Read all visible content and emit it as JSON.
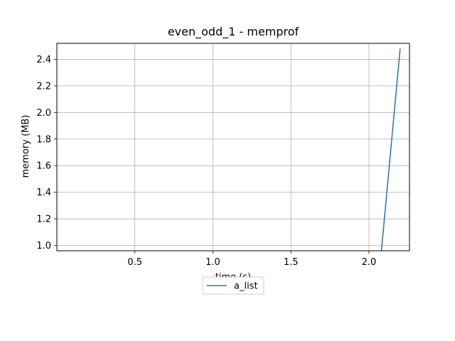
{
  "chart_data": {
    "type": "line",
    "title": "even_odd_1 - memprof",
    "xlabel": "time (s)",
    "ylabel": "memory (MB)",
    "xlim": [
      0.0,
      2.26
    ],
    "ylim": [
      0.96,
      2.52
    ],
    "xticks": [
      0.5,
      1.0,
      1.5,
      2.0
    ],
    "xtick_labels": [
      "0.5",
      "1.0",
      "1.5",
      "2.0"
    ],
    "yticks": [
      1.0,
      1.2,
      1.4,
      1.6,
      1.8,
      2.0,
      2.2,
      2.4
    ],
    "ytick_labels": [
      "1.0",
      "1.2",
      "1.4",
      "1.6",
      "1.8",
      "2.0",
      "2.2",
      "2.4"
    ],
    "grid": true,
    "legend_position": "below plot, center",
    "series": [
      {
        "name": "a_list",
        "color": "#1f77b4",
        "x": [
          2.08,
          2.2
        ],
        "y": [
          0.96,
          2.48
        ]
      }
    ]
  }
}
